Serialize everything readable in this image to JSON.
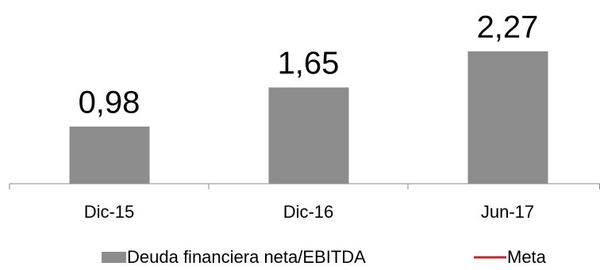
{
  "chart_data": {
    "type": "bar",
    "categories": [
      "Dic-15",
      "Dic-16",
      "Jun-17"
    ],
    "series": [
      {
        "name": "Deuda financiera neta/EBITDA",
        "color": "#8c8c8c",
        "values": [
          0.98,
          1.65,
          2.27
        ],
        "value_labels": [
          "0,98",
          "1,65",
          "2,27"
        ]
      },
      {
        "name": "Meta",
        "color": "#c0282d",
        "values": [
          null,
          null,
          null
        ]
      }
    ],
    "ylim": [
      0,
      3
    ]
  }
}
